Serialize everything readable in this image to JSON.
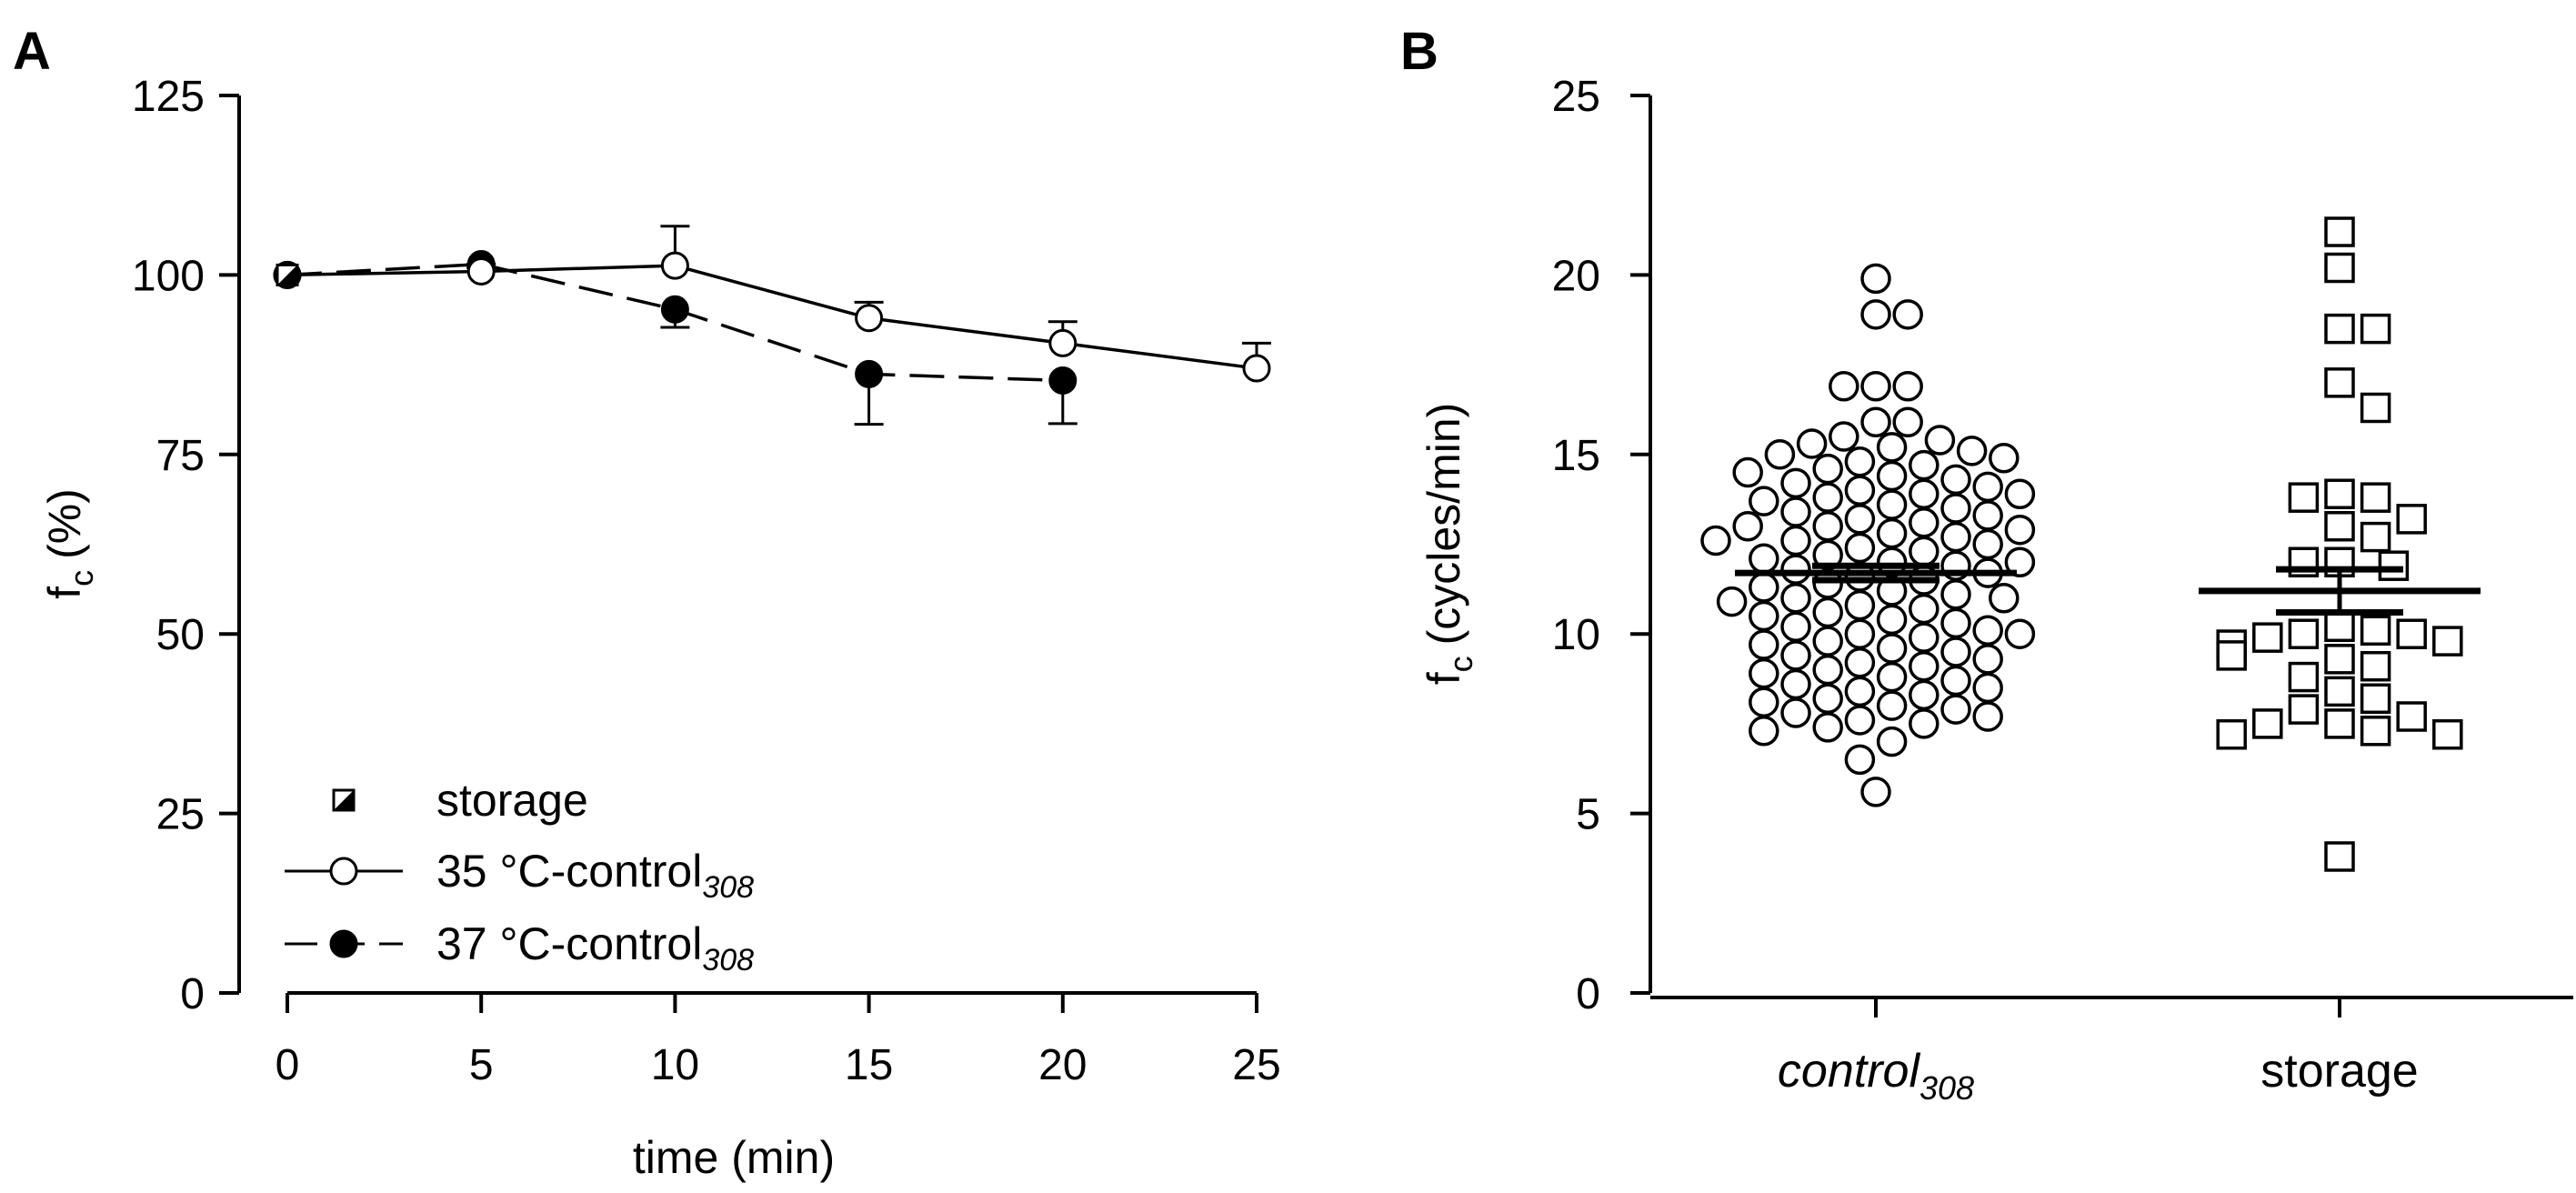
{
  "chart_data": [
    {
      "panel": "A",
      "type": "line",
      "xlabel": "time (min)",
      "ylabel": "f",
      "ylabel_sub": "c",
      "ylabel_unit": "(%)",
      "xlim": [
        0,
        25
      ],
      "ylim": [
        0,
        125
      ],
      "xticks": [
        "0",
        "5",
        "10",
        "15",
        "20",
        "25"
      ],
      "yticks": [
        "0",
        "25",
        "50",
        "75",
        "100",
        "125"
      ],
      "grid": false,
      "legend_position": "bottom-left",
      "series": [
        {
          "name": "storage",
          "marker": "half-filled-square",
          "line": "none",
          "x": [
            0
          ],
          "y": [
            100
          ],
          "err": [
            0
          ]
        },
        {
          "name": "35 °C-control",
          "name_sub": "308",
          "marker": "open-circle",
          "line": "solid",
          "x": [
            0,
            5,
            10,
            15,
            20,
            25
          ],
          "y": [
            100,
            100.5,
            101.3,
            94,
            90.5,
            87
          ],
          "err": [
            0,
            1,
            5.5,
            2.2,
            3,
            3.5
          ]
        },
        {
          "name": "37 °C-control",
          "name_sub": "308",
          "marker": "filled-circle",
          "line": "dashed",
          "x": [
            0,
            5,
            10,
            15,
            20
          ],
          "y": [
            100,
            101.5,
            95.2,
            86.2,
            85.3
          ],
          "err": [
            0,
            0.5,
            2.5,
            7,
            6
          ]
        }
      ]
    },
    {
      "panel": "B",
      "type": "scatter",
      "xlabel": "",
      "ylabel": "f",
      "ylabel_sub": "c",
      "ylabel_unit": "(cycles/min)",
      "ylim": [
        0,
        25
      ],
      "yticks": [
        "0",
        "5",
        "10",
        "15",
        "20",
        "25"
      ],
      "grid": false,
      "categories": [
        {
          "label": "control",
          "label_sub": "308",
          "italic": true,
          "marker": "open-circle"
        },
        {
          "label": "storage",
          "label_sub": "",
          "italic": false,
          "marker": "open-square"
        }
      ],
      "series": [
        {
          "name": "control308",
          "mean": 11.7,
          "sem": 0.2,
          "values": [
            19.9,
            18.9,
            18.9,
            16.9,
            16.9,
            16.9,
            15.9,
            15.9,
            15.5,
            15.4,
            15.3,
            15.2,
            15.1,
            15.0,
            14.9,
            14.8,
            14.7,
            14.6,
            14.5,
            14.4,
            14.3,
            14.2,
            14.1,
            14.0,
            13.9,
            13.9,
            13.8,
            13.7,
            13.6,
            13.5,
            13.4,
            13.3,
            13.2,
            13.1,
            13.0,
            13.0,
            12.9,
            12.8,
            12.7,
            12.6,
            12.6,
            12.5,
            12.4,
            12.3,
            12.2,
            12.1,
            12.0,
            12.0,
            11.9,
            11.8,
            11.7,
            11.6,
            11.5,
            11.4,
            11.3,
            11.2,
            11.1,
            11.0,
            11.0,
            10.9,
            10.8,
            10.7,
            10.6,
            10.5,
            10.4,
            10.3,
            10.2,
            10.1,
            10.0,
            10.0,
            9.9,
            9.8,
            9.7,
            9.6,
            9.5,
            9.4,
            9.3,
            9.2,
            9.1,
            9.0,
            8.9,
            8.8,
            8.7,
            8.6,
            8.5,
            8.4,
            8.3,
            8.2,
            8.1,
            8.0,
            7.9,
            7.8,
            7.7,
            7.6,
            7.5,
            7.4,
            7.3,
            7.0,
            6.5,
            5.6
          ]
        },
        {
          "name": "storage",
          "mean": 11.2,
          "sem": 0.6,
          "values": [
            21.2,
            20.2,
            18.5,
            18.5,
            17.0,
            16.3,
            13.9,
            13.8,
            13.8,
            13.2,
            13.0,
            12.7,
            12.0,
            12.0,
            11.9,
            10.2,
            10.1,
            10.0,
            10.0,
            9.9,
            9.8,
            9.7,
            9.4,
            9.3,
            9.1,
            8.8,
            8.4,
            8.2,
            7.9,
            7.7,
            7.5,
            7.5,
            7.3,
            7.2,
            7.2,
            3.8
          ]
        }
      ]
    }
  ]
}
